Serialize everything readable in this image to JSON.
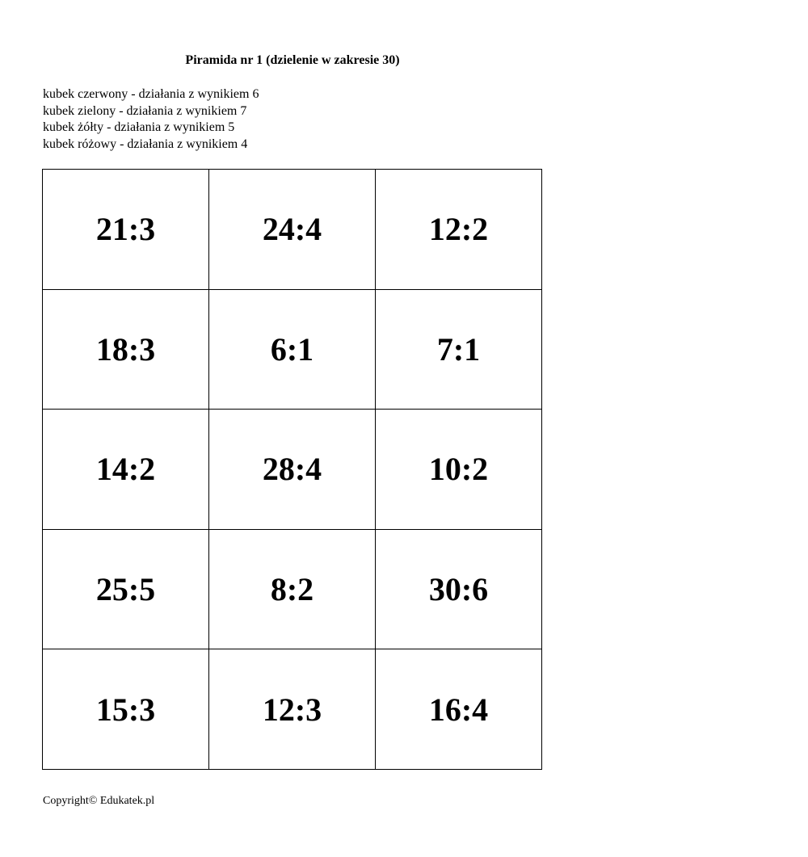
{
  "title": "Piramida nr 1 (dzielenie w zakresie 30)",
  "legend": [
    "kubek czerwony - działania z wynikiem 6",
    "kubek zielony - działania z wynikiem 7",
    "kubek żółty - działania z wynikiem 5",
    "kubek różowy - działania z wynikiem 4"
  ],
  "cards": [
    [
      "21:3",
      "24:4",
      "12:2"
    ],
    [
      "18:3",
      "6:1",
      "7:1"
    ],
    [
      "14:2",
      "28:4",
      "10:2"
    ],
    [
      "25:5",
      "8:2",
      "30:6"
    ],
    [
      "15:3",
      "12:3",
      "16:4"
    ]
  ],
  "copyright": "Copyright© Edukatek.pl"
}
